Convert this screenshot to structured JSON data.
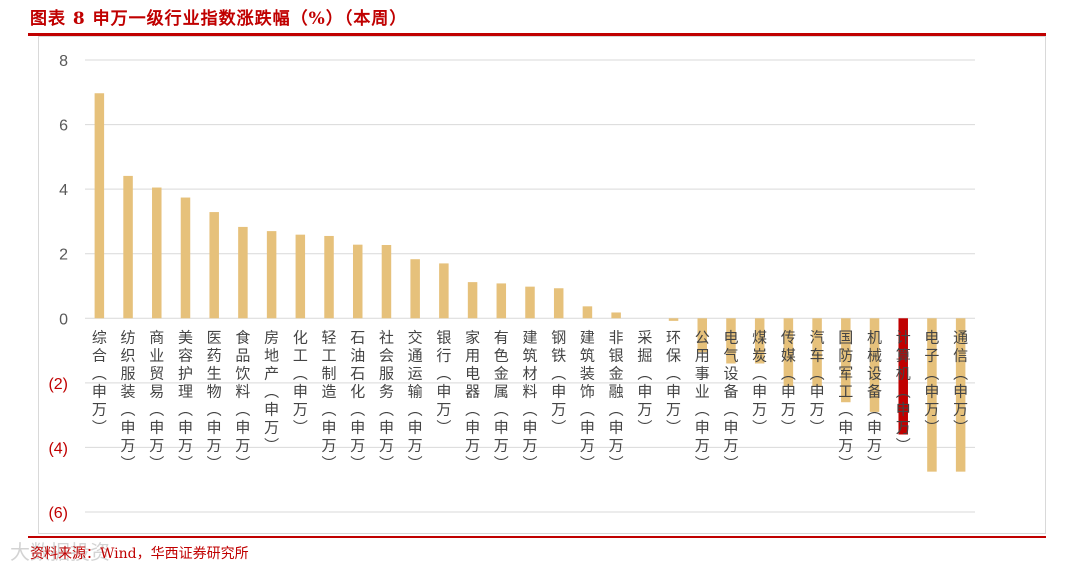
{
  "figure": {
    "title": "图表 8 申万一级行业指数涨跌幅（%）（本周）",
    "source": "资料来源：Wind，华西证券研究所",
    "watermark": "大数据投资"
  },
  "colors": {
    "bar": "#E6C17B",
    "highlight": "#C00000",
    "rule": "#C00000",
    "negative_tick": "#C00000",
    "positive_tick": "#595959",
    "grid": "#D9D9D9"
  },
  "chart_data": {
    "type": "bar",
    "title": "图表 8 申万一级行业指数涨跌幅（%）（本周）",
    "xlabel": "",
    "ylabel": "",
    "ylim": [
      -6,
      8
    ],
    "yticks": [
      8,
      6,
      4,
      2,
      0,
      -2,
      -4,
      -6
    ],
    "ytick_labels": [
      "8",
      "6",
      "4",
      "2",
      "0",
      "(2)",
      "(4)",
      "(6)"
    ],
    "grid": true,
    "highlight_index": 28,
    "categories": [
      "综合(申万)",
      "纺织服装(申万)",
      "商业贸易(申万)",
      "美容护理(申万)",
      "医药生物(申万)",
      "食品饮料(申万)",
      "房地产(申万)",
      "化工(申万)",
      "轻工制造(申万)",
      "石油石化(申万)",
      "社会服务(申万)",
      "交通运输(申万)",
      "银行(申万)",
      "家用电器(申万)",
      "有色金属(申万)",
      "建筑材料(申万)",
      "钢铁(申万)",
      "建筑装饰(申万)",
      "非银金融(申万)",
      "采掘(申万)",
      "环保(申万)",
      "公用事业(申万)",
      "电气设备(申万)",
      "煤炭(申万)",
      "传媒(申万)",
      "汽车(申万)",
      "国防军工(申万)",
      "机械设备(申万)",
      "计算机(申万)",
      "电子(申万)",
      "通信(申万)"
    ],
    "values": [
      6.97,
      4.41,
      4.05,
      3.74,
      3.29,
      2.83,
      2.7,
      2.59,
      2.55,
      2.28,
      2.27,
      1.83,
      1.7,
      1.12,
      1.08,
      0.98,
      0.93,
      0.37,
      0.18,
      0.0,
      -0.08,
      -1.05,
      -1.4,
      -1.4,
      -2.1,
      -2.1,
      -2.6,
      -2.9,
      -3.6,
      -4.75,
      -4.75
    ]
  }
}
